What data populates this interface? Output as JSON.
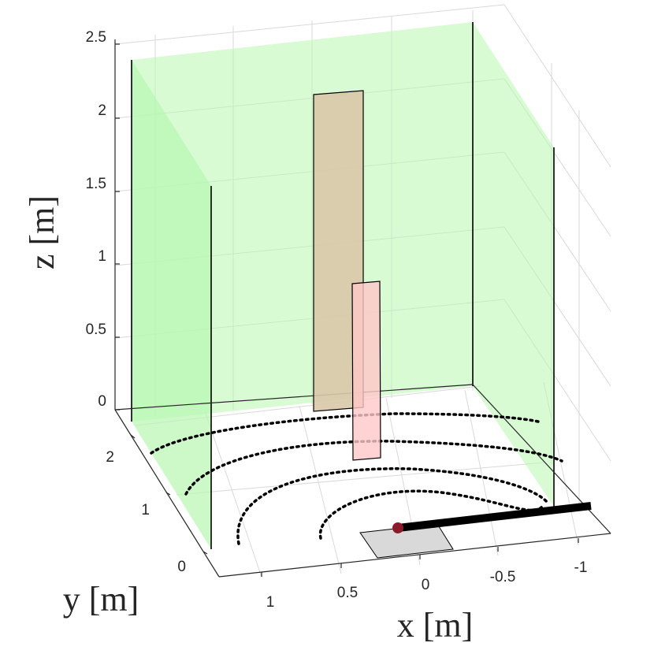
{
  "chart_data": {
    "type": "3d-scene",
    "axes": {
      "x": {
        "label": "x [m]",
        "ticks": [
          1,
          0.5,
          0,
          -0.5,
          -1
        ],
        "tick_labels": [
          "1",
          "0.5",
          "0",
          "-0.5",
          "-1"
        ]
      },
      "y": {
        "label": "y [m]",
        "ticks": [
          0,
          1,
          2
        ],
        "tick_labels": [
          "0",
          "1",
          "2"
        ]
      },
      "z": {
        "label": "z [m]",
        "ticks": [
          0,
          0.5,
          1,
          1.5,
          2,
          2.5
        ],
        "tick_labels": [
          "0",
          "0.5",
          "1",
          "1.5",
          "2",
          "2.5"
        ]
      }
    },
    "grid": true,
    "colors": {
      "wall_fill": "#b8f7b0",
      "wall_edge": "#000000",
      "tan_panel": "#d9c8a8",
      "pink_panel": "#ffc8c8",
      "floor_patch": "#d9d9d9",
      "rod": "#000000",
      "joint": "#8b1a2a",
      "grid_line": "#d9d9d9",
      "axis_line": "#262626"
    },
    "dotted_arcs": 4,
    "tan_panel_z": [
      0,
      2.1
    ],
    "pink_panel_z": [
      -0.6,
      0.8
    ]
  }
}
